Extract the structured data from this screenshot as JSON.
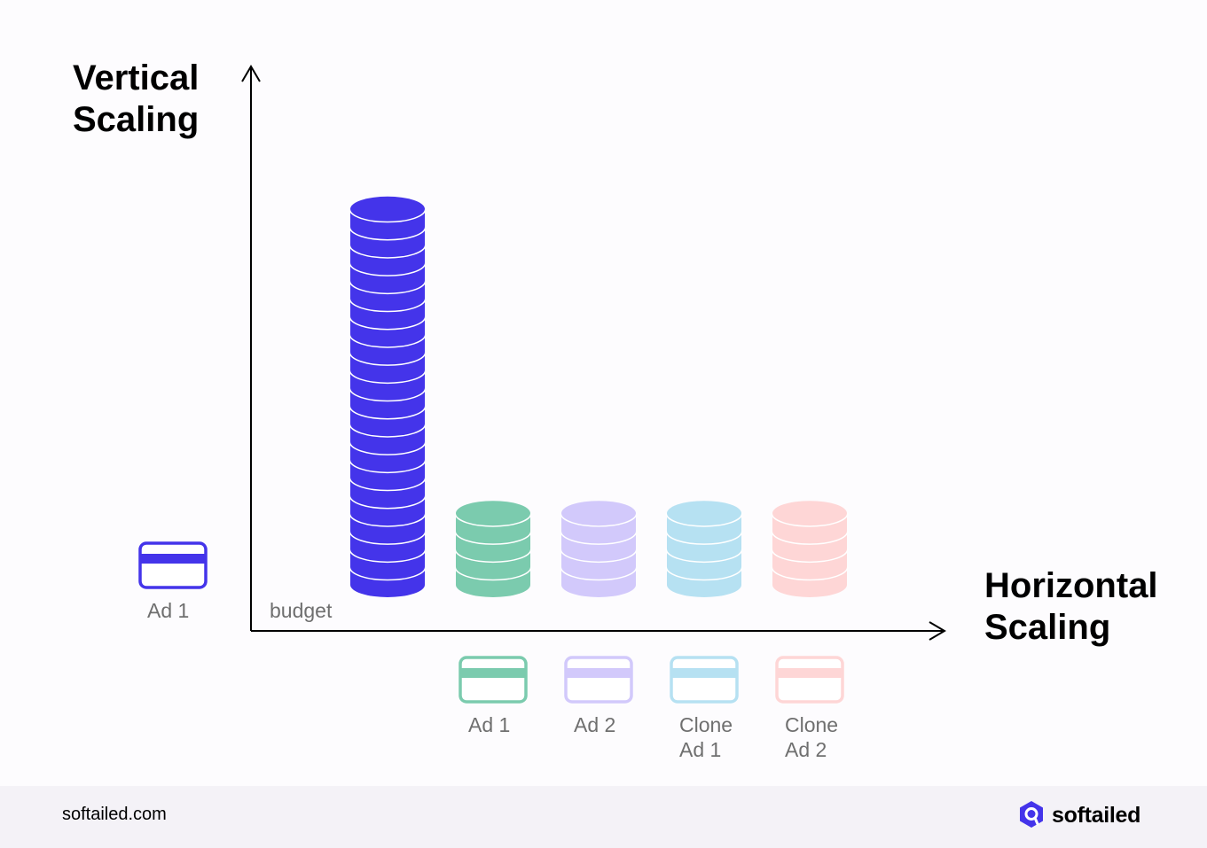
{
  "titles": {
    "vertical": [
      "Vertical",
      "Scaling"
    ],
    "horizontal": [
      "Horizontal",
      "Scaling"
    ]
  },
  "axis_label": "budget",
  "left_ad": {
    "label": "Ad 1",
    "color": "#4434ea"
  },
  "vertical_stack": {
    "coins": 21,
    "color": "#4434ea"
  },
  "horizontal_items": [
    {
      "label": [
        "Ad 1"
      ],
      "coins": 4,
      "color": "#7bcbae"
    },
    {
      "label": [
        "Ad 2"
      ],
      "coins": 4,
      "color": "#d2c9fb"
    },
    {
      "label": [
        "Clone",
        "Ad 1"
      ],
      "coins": 4,
      "color": "#b6e1f2"
    },
    {
      "label": [
        "Clone",
        "Ad 2"
      ],
      "coins": 4,
      "color": "#fed6d6"
    }
  ],
  "footer": {
    "url": "softailed.com",
    "brand": "softailed"
  },
  "brand_color": "#4434ea"
}
